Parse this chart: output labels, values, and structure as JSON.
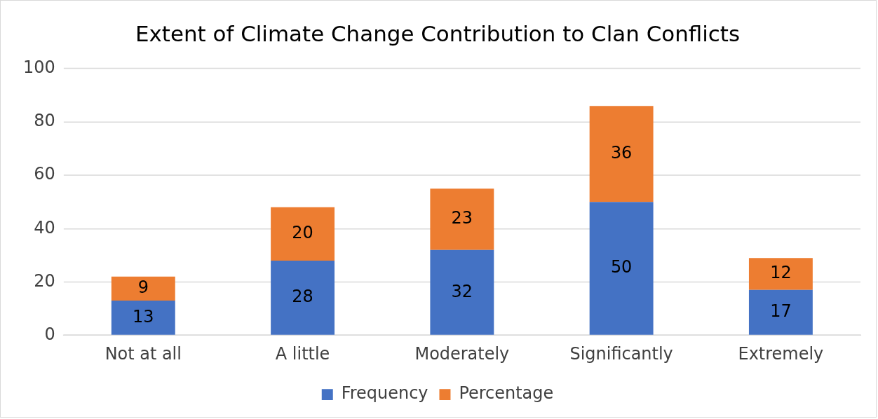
{
  "chart_data": {
    "type": "bar",
    "title": "Extent of Climate Change Contribution to Clan Conflicts",
    "categories": [
      "Not at all",
      "A little",
      "Moderately",
      "Significantly",
      "Extremely"
    ],
    "stacked": true,
    "series": [
      {
        "name": "Frequency",
        "color": "#4472c4",
        "values": [
          13,
          28,
          32,
          50,
          17
        ]
      },
      {
        "name": "Percentage",
        "color": "#ed7d31",
        "values": [
          9,
          20,
          23,
          36,
          12
        ]
      }
    ],
    "ylim": [
      0,
      100
    ],
    "yticks": [
      0,
      20,
      40,
      60,
      80,
      100
    ],
    "grid": "y",
    "legend": "bottom",
    "data_labels": true
  }
}
